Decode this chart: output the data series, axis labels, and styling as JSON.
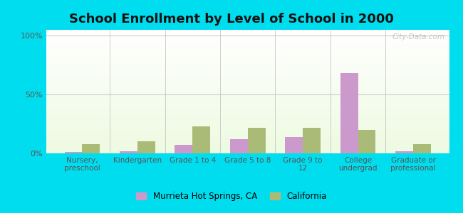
{
  "title": "School Enrollment by Level of School in 2000",
  "categories": [
    "Nursery,\npreschool",
    "Kindergarten",
    "Grade 1 to 4",
    "Grade 5 to 8",
    "Grade 9 to\n12",
    "College\nundergrad",
    "Graduate or\nprofessional"
  ],
  "murrieta_values": [
    1,
    2,
    7,
    12,
    14,
    68,
    2
  ],
  "california_values": [
    8,
    10,
    23,
    22,
    22,
    20,
    8
  ],
  "murrieta_color": "#cc99cc",
  "california_color": "#aabb77",
  "legend_murrieta": "Murrieta Hot Springs, CA",
  "legend_california": "California",
  "yticks": [
    0,
    50,
    100
  ],
  "ytick_labels": [
    "0%",
    "50%",
    "100%"
  ],
  "ylim": [
    0,
    105
  ],
  "outer_bg": "#00ddee",
  "title_fontsize": 13,
  "watermark": "City-Data.com",
  "bar_width": 0.32
}
